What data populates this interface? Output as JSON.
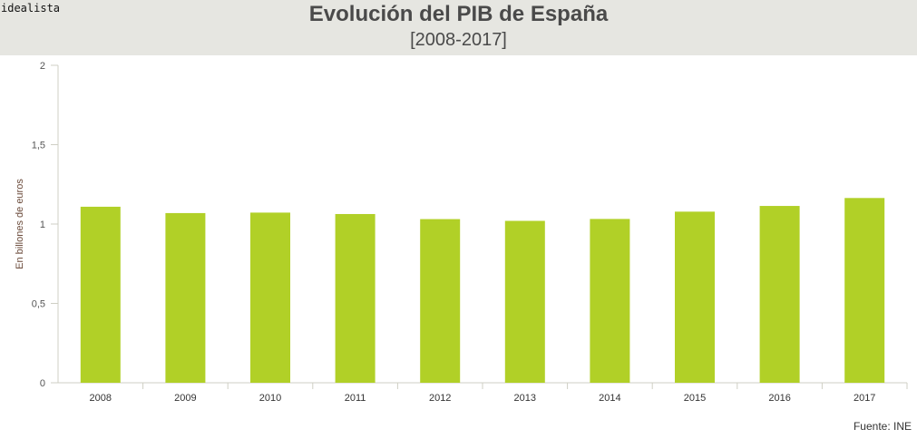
{
  "header": {
    "logo": "idealista",
    "title": "Evolución del PIB de España",
    "subtitle": "[2008-2017]"
  },
  "source": "Fuente: INE",
  "chart_data": {
    "type": "bar",
    "title": "Evolución del PIB de España",
    "subtitle": "[2008-2017]",
    "xlabel": "",
    "ylabel": "En billones de euros",
    "ylim": [
      0,
      2
    ],
    "yticks": [
      "0",
      "0,5",
      "1",
      "1,5",
      "2"
    ],
    "categories": [
      "2008",
      "2009",
      "2010",
      "2011",
      "2012",
      "2013",
      "2014",
      "2015",
      "2016",
      "2017"
    ],
    "values": [
      1.109,
      1.069,
      1.072,
      1.063,
      1.031,
      1.02,
      1.032,
      1.078,
      1.114,
      1.164
    ],
    "bar_color": "#b1d027",
    "grid": false
  }
}
